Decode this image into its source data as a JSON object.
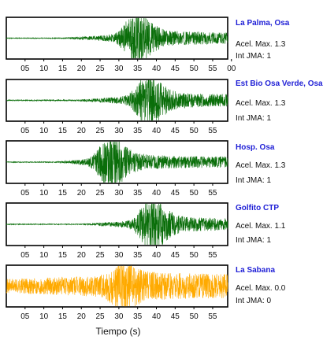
{
  "chart_data": {
    "type": "line",
    "xlabel": "Tiempo (s)",
    "x_tick_labels": [
      [
        "05",
        "10",
        "15",
        "20",
        "25",
        "30",
        "35",
        "40",
        "45",
        "50",
        "55",
        "00"
      ],
      [
        "05",
        "10",
        "15",
        "20",
        "25",
        "30",
        "35",
        "40",
        "45",
        "50",
        "55"
      ],
      [
        "05",
        "10",
        "15",
        "20",
        "25",
        "30",
        "35",
        "40",
        "45",
        "50",
        "55"
      ],
      [
        "05",
        "10",
        "15",
        "20",
        "25",
        "30",
        "35",
        "40",
        "45",
        "50",
        "55"
      ],
      [
        "05",
        "10",
        "15",
        "20",
        "25",
        "30",
        "35",
        "40",
        "45",
        "50",
        "55"
      ]
    ],
    "x_tick_seconds": [
      5,
      10,
      15,
      20,
      25,
      30,
      35,
      40,
      45,
      50,
      55,
      60
    ],
    "xlim": [
      0,
      59
    ],
    "grid": false,
    "panels": [
      {
        "station": "La Palma, Osa",
        "acel_label": "Acel. Max. 1.3",
        "jma_label": "Int JMA: 1",
        "color": "#0a6e0a",
        "onset_s": 15,
        "peak_s": 34,
        "peak_amp": 1.0,
        "noise": 0.02,
        "seed": 11
      },
      {
        "station": "Est Bio Osa Verde, Osa",
        "acel_label": "Acel. Max. 1.3",
        "jma_label": "Int JMA: 1",
        "color": "#0a6e0a",
        "onset_s": 18,
        "peak_s": 37,
        "peak_amp": 1.0,
        "noise": 0.03,
        "seed": 23
      },
      {
        "station": "Hosp. Osa",
        "acel_label": "Acel. Max. 1.3",
        "jma_label": "Int JMA: 1",
        "color": "#0a6e0a",
        "onset_s": 13,
        "peak_s": 27,
        "peak_amp": 1.0,
        "noise": 0.02,
        "seed": 37
      },
      {
        "station": "Golfito CTP",
        "acel_label": "Acel. Max. 1.1",
        "jma_label": "Int JMA: 1",
        "color": "#0a6e0a",
        "onset_s": 20,
        "peak_s": 38,
        "peak_amp": 1.0,
        "noise": 0.02,
        "seed": 53
      },
      {
        "station": "La Sabana",
        "acel_label": "Acel. Max. 0.0",
        "jma_label": "Int JMA: 0",
        "color": "#ffaa00",
        "onset_s": 0,
        "peak_s": 30,
        "peak_amp": 0.55,
        "noise": 0.35,
        "seed": 71
      }
    ]
  }
}
